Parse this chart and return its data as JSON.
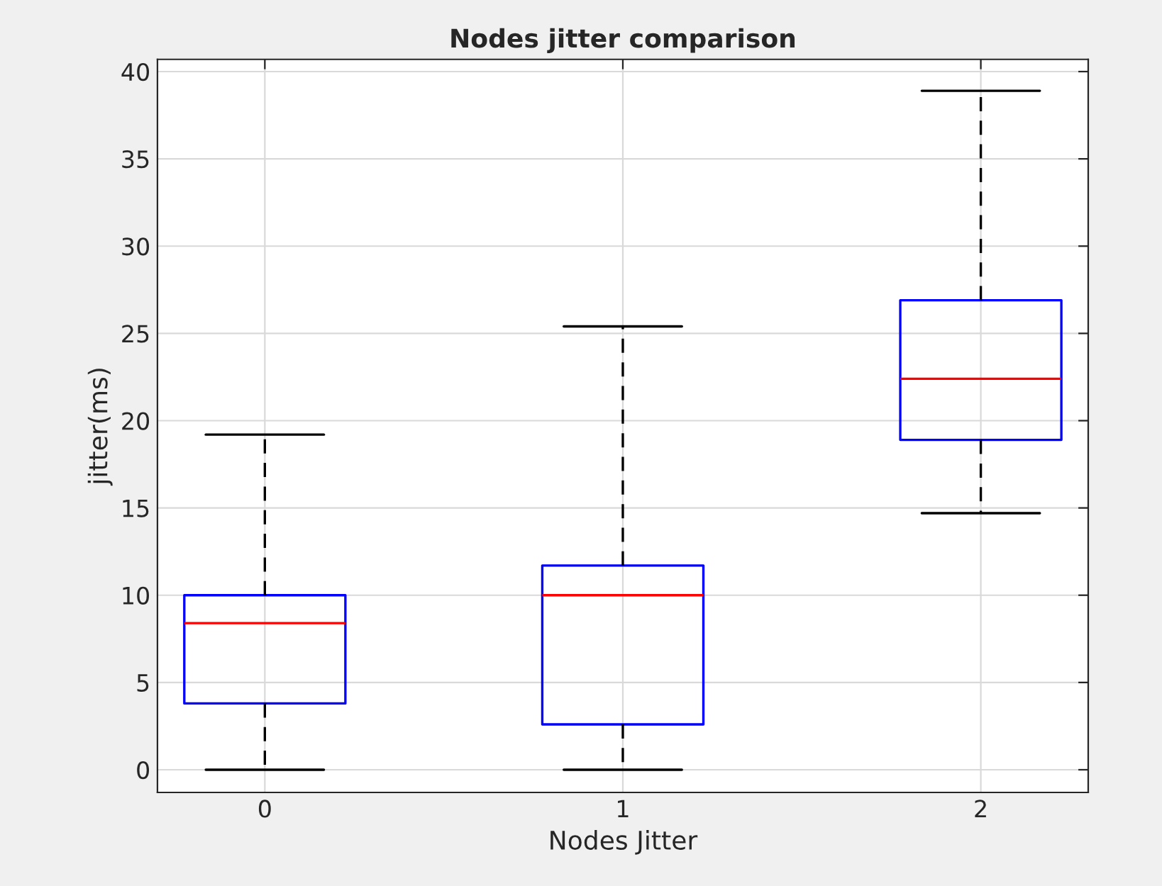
{
  "chart_data": {
    "type": "box",
    "title": "Nodes jitter comparison",
    "xlabel": "Nodes Jitter",
    "ylabel": "jitter(ms)",
    "categories": [
      "0",
      "1",
      "2"
    ],
    "series": [
      {
        "color": "#0000ff",
        "boxes": [
          {
            "low": 0,
            "q1": 3.8,
            "median": 8.4,
            "q3": 10.0,
            "high": 19.2
          },
          {
            "low": 0,
            "q1": 2.6,
            "median": 10.0,
            "q3": 11.7,
            "high": 25.4
          },
          {
            "low": 14.7,
            "q1": 18.9,
            "median": 22.4,
            "q3": 26.9,
            "high": 38.9
          }
        ]
      }
    ],
    "ylim": [
      -1.3,
      40.7
    ],
    "yticks": [
      0,
      5,
      10,
      15,
      20,
      25,
      30,
      35,
      40
    ],
    "grid": true,
    "line_style": "dashed"
  }
}
